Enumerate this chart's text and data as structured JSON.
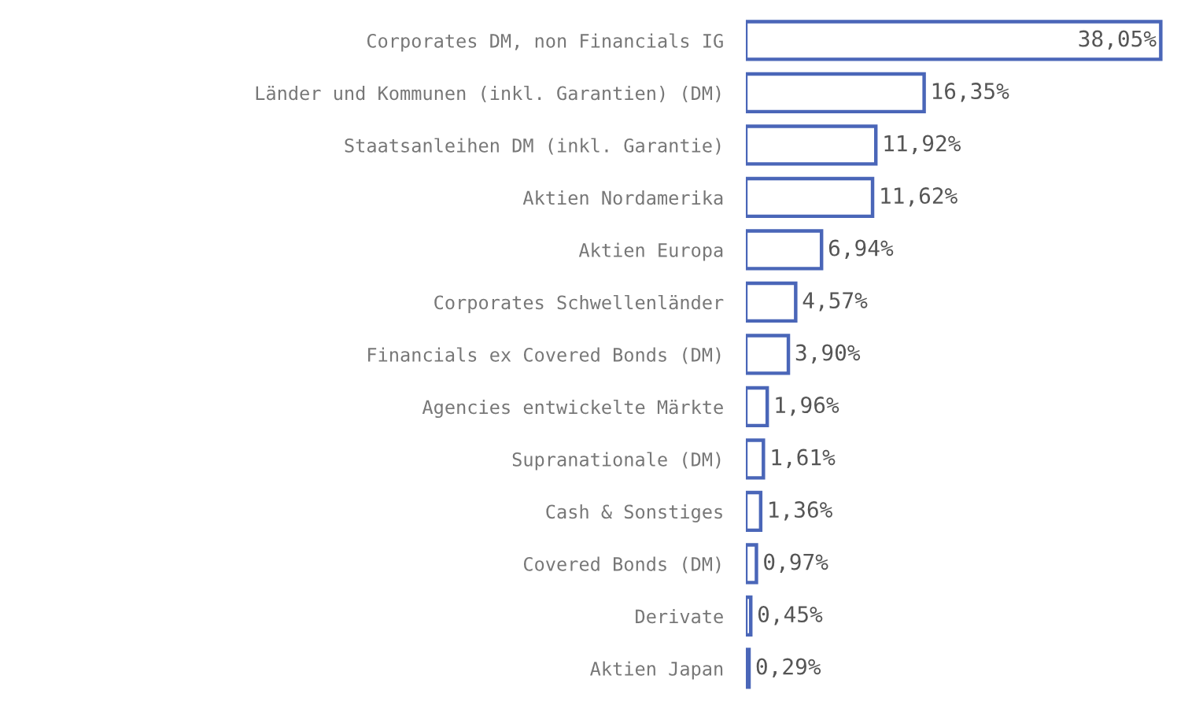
{
  "chart_data": {
    "type": "bar",
    "orientation": "horizontal",
    "color": "#4a66b8",
    "categories": [
      "Corporates DM, non Financials IG",
      "Länder und Kommunen (inkl. Garantien) (DM)",
      "Staatsanleihen DM (inkl. Garantie)",
      "Aktien Nordamerika",
      "Aktien Europa",
      "Corporates Schwellenländer",
      "Financials ex Covered Bonds (DM)",
      "Agencies entwickelte Märkte",
      "Supranationale (DM)",
      "Cash & Sonstiges",
      "Covered Bonds (DM)",
      "Derivate",
      "Aktien Japan"
    ],
    "values": [
      38.05,
      16.35,
      11.92,
      11.62,
      6.94,
      4.57,
      3.9,
      1.96,
      1.61,
      1.36,
      0.97,
      0.45,
      0.29
    ],
    "value_labels": [
      "38,05%",
      "16,35%",
      "11,92%",
      "11,62%",
      "6,94%",
      "4,57%",
      "3,90%",
      "1,96%",
      "1,61%",
      "1,36%",
      "0,97%",
      "0,45%",
      "0,29%"
    ],
    "grid": false,
    "legend": false
  }
}
